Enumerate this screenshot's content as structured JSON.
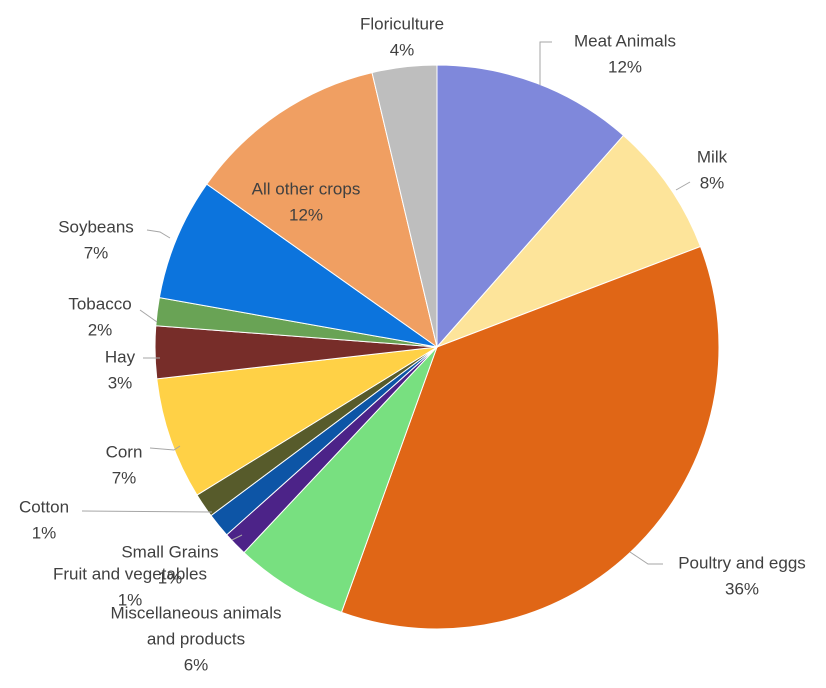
{
  "chart_data": {
    "type": "pie",
    "title": "",
    "start_angle_deg": 0,
    "direction": "clockwise",
    "slices": [
      {
        "label": "Meat Animals",
        "pct_label": "12%",
        "value": 11.5,
        "color": "#7f88db"
      },
      {
        "label": "Milk",
        "pct_label": "8%",
        "value": 7.7,
        "color": "#fde49a"
      },
      {
        "label": "Poultry and eggs",
        "pct_label": "36%",
        "value": 36.3,
        "color": "#e06616"
      },
      {
        "label": "Miscellaneous animals and products",
        "pct_label": "6%",
        "value": 6.5,
        "color": "#78e080"
      },
      {
        "label": "Fruit and vegetables",
        "pct_label": "1%",
        "value": 1.4,
        "color": "#4c2388"
      },
      {
        "label": "Small Grains",
        "pct_label": "1%",
        "value": 1.4,
        "color": "#0d55a6"
      },
      {
        "label": "Cotton",
        "pct_label": "1%",
        "value": 1.4,
        "color": "#575b2b"
      },
      {
        "label": "Corn",
        "pct_label": "7%",
        "value": 7.0,
        "color": "#ffd146"
      },
      {
        "label": "Hay",
        "pct_label": "3%",
        "value": 3.0,
        "color": "#772d29"
      },
      {
        "label": "Tobacco",
        "pct_label": "2%",
        "value": 1.6,
        "color": "#69a355"
      },
      {
        "label": "Soybeans",
        "pct_label": "7%",
        "value": 7.0,
        "color": "#0c74dd"
      },
      {
        "label": "All other crops",
        "pct_label": "12%",
        "value": 11.5,
        "color": "#f09f62"
      },
      {
        "label": "Floriculture",
        "pct_label": "4%",
        "value": 3.7,
        "color": "#bebebe"
      }
    ]
  }
}
